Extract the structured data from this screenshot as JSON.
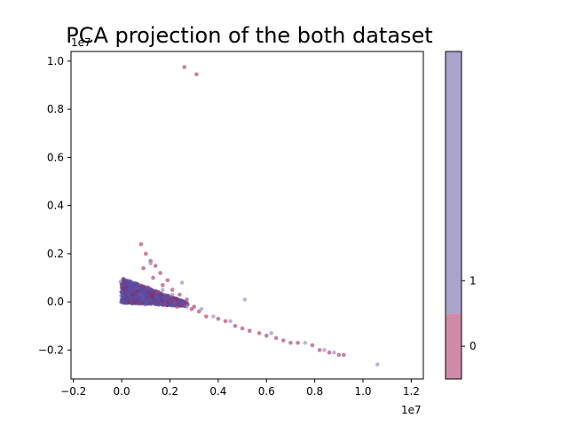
{
  "chart_data": {
    "type": "scatter",
    "title": "PCA projection of the both dataset",
    "xlabel": "",
    "ylabel": "",
    "x_offset_label": "1e7",
    "y_offset_label": "1e7",
    "xlim": [
      -0.21,
      1.25
    ],
    "ylim": [
      -0.32,
      1.04
    ],
    "x_ticks": [
      -0.2,
      0.0,
      0.2,
      0.4,
      0.6,
      0.8,
      1.0,
      1.2
    ],
    "x_tick_labels": [
      "−0.2",
      "0.0",
      "0.2",
      "0.4",
      "0.6",
      "0.8",
      "1.0",
      "1.2"
    ],
    "y_ticks": [
      -0.2,
      0.0,
      0.2,
      0.4,
      0.6,
      0.8,
      1.0
    ],
    "y_tick_labels": [
      "−0.2",
      "0.0",
      "0.2",
      "0.4",
      "0.6",
      "0.8",
      "1.0"
    ],
    "grid": false,
    "colorbar": {
      "ticks": [
        0,
        1
      ],
      "tick_labels": [
        "0",
        "1"
      ],
      "colors": {
        "0": "#ce8ca8",
        "1": "#a9a3ce"
      },
      "range": [
        -0.5,
        4.5
      ]
    },
    "series": [
      {
        "class": 0,
        "color": "#b03a6e",
        "points": [
          [
            0.26,
            0.975
          ],
          [
            0.31,
            0.945
          ],
          [
            0.08,
            0.24
          ],
          [
            0.1,
            0.2
          ],
          [
            0.12,
            0.17
          ],
          [
            0.14,
            0.15
          ],
          [
            0.09,
            0.14
          ],
          [
            0.16,
            0.12
          ],
          [
            0.13,
            0.1
          ],
          [
            0.19,
            0.09
          ],
          [
            0.17,
            0.07
          ],
          [
            0.21,
            0.05
          ],
          [
            0.24,
            0.03
          ],
          [
            0.2,
            0.02
          ],
          [
            0.27,
            0.01
          ],
          [
            0.18,
            -0.01
          ],
          [
            0.23,
            -0.02
          ],
          [
            0.29,
            -0.03
          ],
          [
            0.32,
            -0.04
          ],
          [
            0.35,
            -0.06
          ],
          [
            0.4,
            -0.07
          ],
          [
            0.43,
            -0.08
          ],
          [
            0.47,
            -0.1
          ],
          [
            0.5,
            -0.11
          ],
          [
            0.53,
            -0.12
          ],
          [
            0.57,
            -0.13
          ],
          [
            0.6,
            -0.14
          ],
          [
            0.64,
            -0.15
          ],
          [
            0.67,
            -0.16
          ],
          [
            0.7,
            -0.17
          ],
          [
            0.73,
            -0.17
          ],
          [
            0.79,
            -0.18
          ],
          [
            0.82,
            -0.2
          ],
          [
            0.86,
            -0.21
          ],
          [
            0.9,
            -0.22
          ],
          [
            0.92,
            -0.22
          ],
          [
            0.11,
            0.06
          ],
          [
            0.15,
            0.04
          ],
          [
            0.22,
            0.0
          ],
          [
            0.26,
            -0.01
          ],
          [
            0.3,
            -0.02
          ]
        ]
      },
      {
        "class": 1,
        "color": "#9a8cc4",
        "points": [
          [
            0.51,
            0.01
          ],
          [
            1.06,
            -0.26
          ],
          [
            0.25,
            0.08
          ],
          [
            0.27,
            -0.02
          ],
          [
            0.38,
            -0.06
          ],
          [
            0.45,
            -0.08
          ],
          [
            0.62,
            -0.13
          ],
          [
            0.76,
            -0.17
          ],
          [
            0.84,
            -0.2
          ],
          [
            0.88,
            -0.21
          ],
          [
            0.12,
            0.16
          ],
          [
            0.17,
            0.05
          ],
          [
            0.21,
            0.03
          ],
          [
            0.33,
            -0.03
          ]
        ]
      }
    ]
  }
}
